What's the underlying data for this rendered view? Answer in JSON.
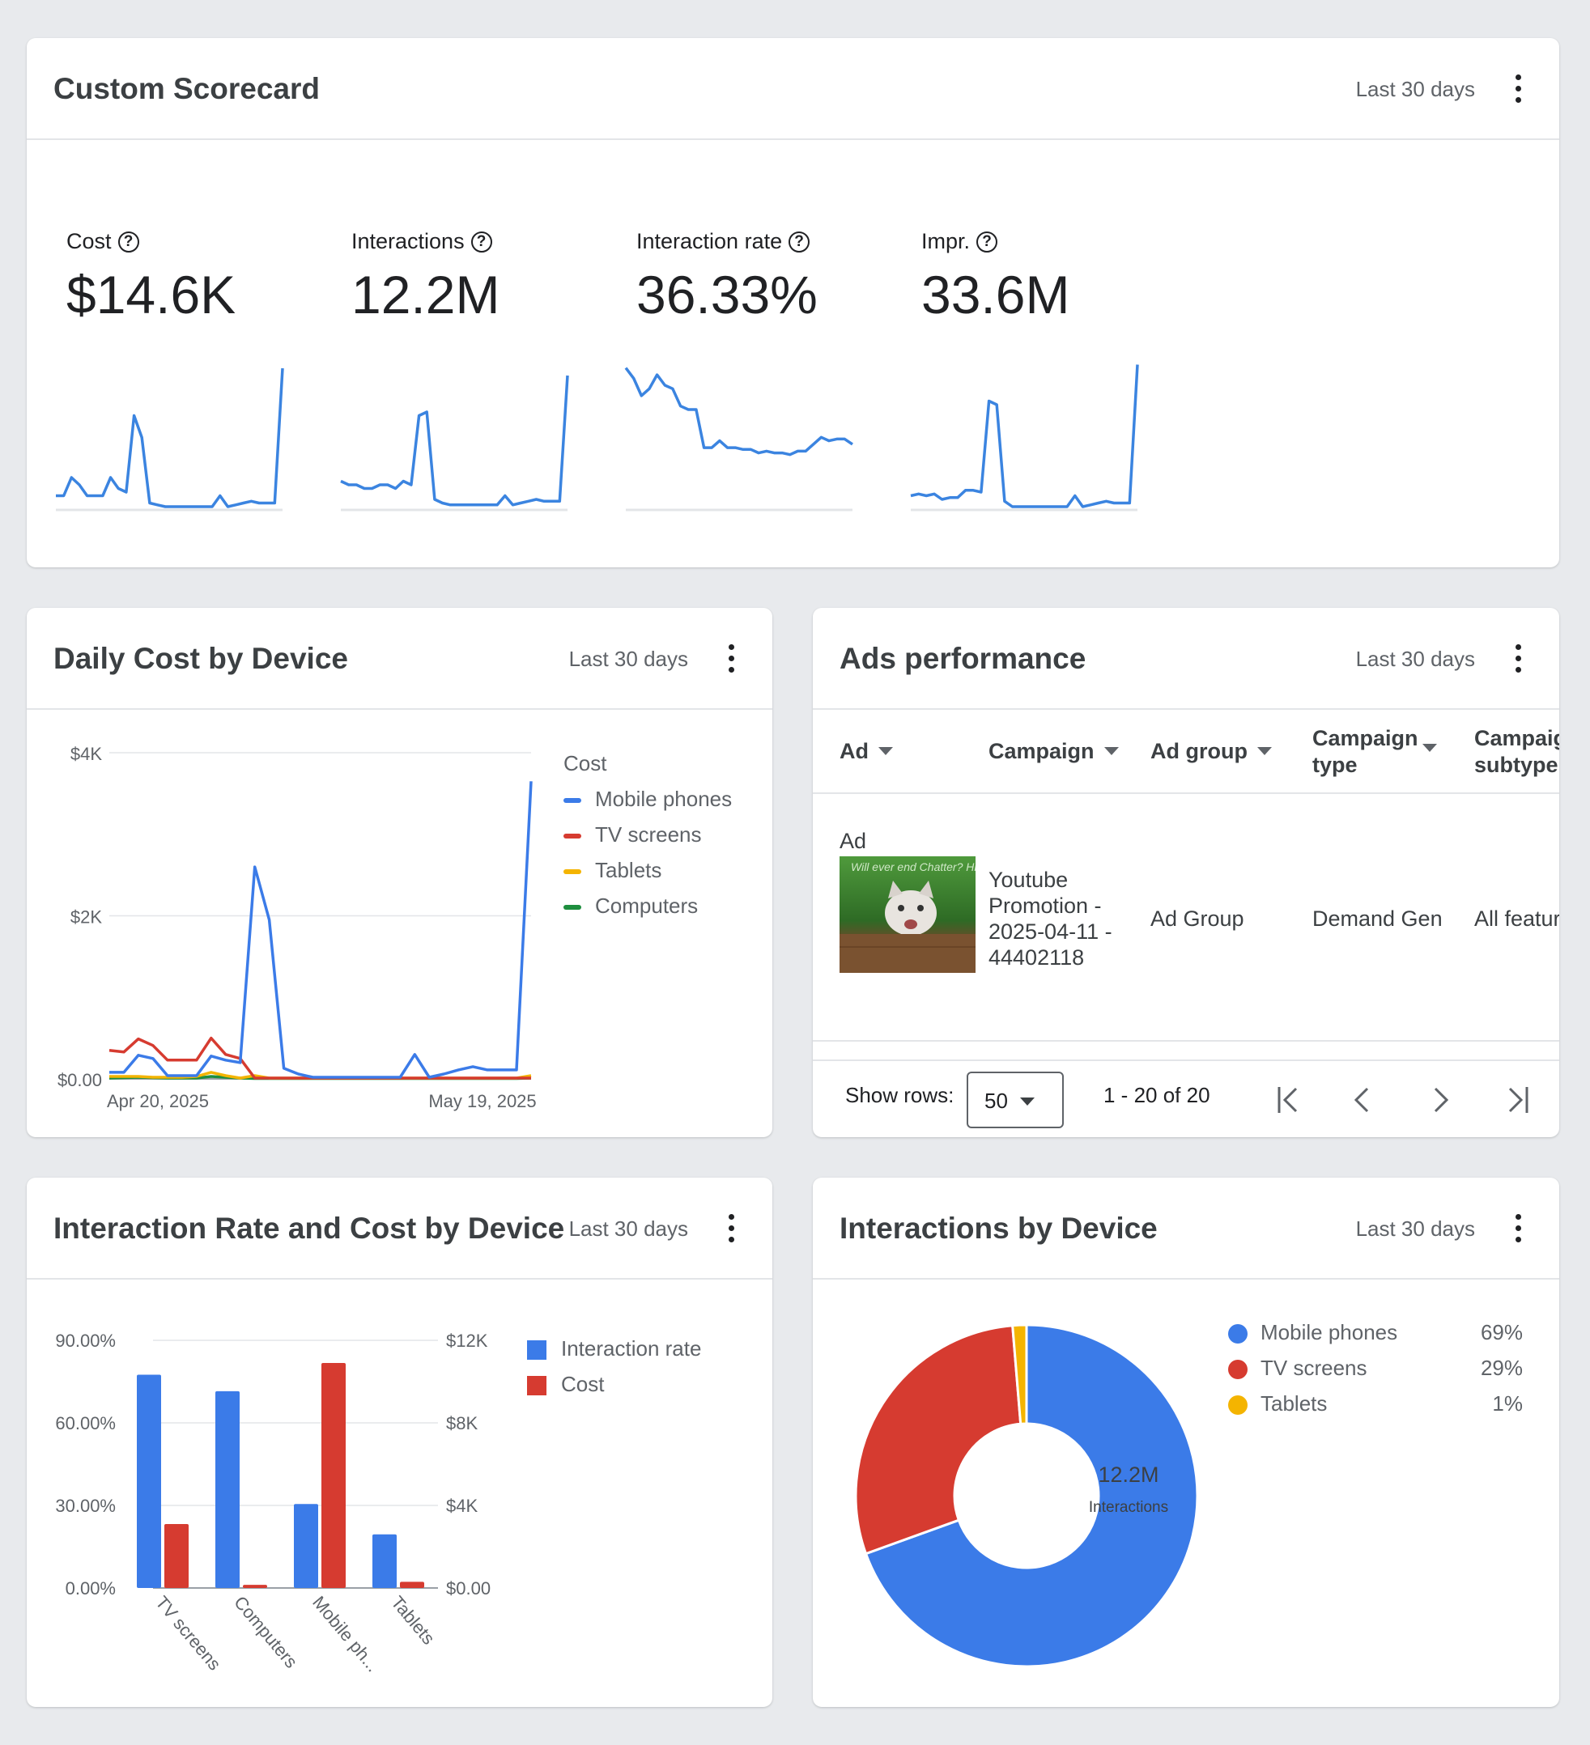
{
  "scorecard": {
    "title": "Custom Scorecard",
    "range": "Last 30 days",
    "metrics": [
      {
        "label": "Cost",
        "value": "$14.6K"
      },
      {
        "label": "Interactions",
        "value": "12.2M"
      },
      {
        "label": "Interaction rate",
        "value": "36.33%"
      },
      {
        "label": "Impr.",
        "value": "33.6M"
      }
    ]
  },
  "daily_cost": {
    "title": "Daily Cost by Device",
    "range": "Last 30 days",
    "legend_title": "Cost",
    "legend": [
      "Mobile phones",
      "TV screens",
      "Tablets",
      "Computers"
    ]
  },
  "ads": {
    "title": "Ads performance",
    "range": "Last 30 days",
    "columns": [
      "Ad",
      "Campaign",
      "Ad group",
      "Campaign type",
      "Campaign subtype"
    ],
    "row": {
      "ad": "Ad",
      "campaign": "Youtube Promotion - 2025-04-11 - 44402118",
      "ad_group": "Ad Group",
      "campaign_type": "Demand Gen",
      "campaign_subtype": "All features"
    },
    "thumbnail_text": "Will ever end Chatter? Hi!",
    "show_rows_label": "Show rows:",
    "rows_value": "50",
    "page_range": "1 - 20 of 20"
  },
  "rate_cost": {
    "title": "Interaction Rate and Cost by Device",
    "range": "Last 30 days",
    "legend": [
      "Interaction rate",
      "Cost"
    ]
  },
  "interactions": {
    "title": "Interactions by Device",
    "range": "Last 30 days",
    "center_value": "12.2M",
    "center_label": "Interactions",
    "legend": [
      {
        "label": "Mobile phones",
        "pct": "69%"
      },
      {
        "label": "TV screens",
        "pct": "29%"
      },
      {
        "label": "Tablets",
        "pct": "1%"
      }
    ]
  },
  "colors": {
    "blue": "#3b7be8",
    "red": "#d63b30",
    "yellow": "#f4b400",
    "green": "#1e8e3e"
  },
  "chart_data": [
    {
      "type": "line",
      "series": [
        {
          "name": "Cost",
          "values": [
            3,
            3,
            8,
            6,
            3,
            3,
            3,
            8,
            5,
            4,
            25,
            19,
            1,
            0.5,
            0,
            0,
            0,
            0,
            0,
            0,
            0,
            3,
            0,
            0.5,
            1,
            1.5,
            1,
            1,
            1,
            38
          ]
        }
      ],
      "ylim": [
        0,
        40
      ]
    },
    {
      "type": "line",
      "series": [
        {
          "name": "Interactions",
          "values": [
            7,
            6,
            6,
            5,
            5,
            6,
            6,
            5,
            7,
            6,
            25,
            26,
            2,
            1,
            0.5,
            0.5,
            0.5,
            0.5,
            0.5,
            0.5,
            0.5,
            3,
            0.5,
            1,
            1.5,
            2,
            1.5,
            1.5,
            1.5,
            36
          ]
        }
      ],
      "ylim": [
        0,
        40
      ]
    },
    {
      "type": "line",
      "series": [
        {
          "name": "Interaction rate",
          "values": [
            40,
            37,
            32,
            34,
            38,
            35,
            34,
            29,
            28,
            28,
            17,
            17,
            19,
            17,
            17,
            16.5,
            16.5,
            15.5,
            16,
            15.5,
            15.5,
            15,
            16,
            16,
            18,
            20,
            19,
            19.5,
            19.5,
            18
          ]
        }
      ],
      "ylim": [
        0,
        42
      ]
    },
    {
      "type": "line",
      "series": [
        {
          "name": "Impr.",
          "values": [
            3,
            3.5,
            3,
            3.5,
            2,
            2.5,
            2.5,
            4.5,
            4.5,
            4,
            29,
            28,
            1.5,
            0,
            0,
            0,
            0,
            0,
            0,
            0,
            0,
            3,
            0,
            0.5,
            1,
            1.5,
            1,
            1,
            1,
            39
          ]
        }
      ],
      "ylim": [
        0,
        40
      ]
    },
    {
      "type": "line",
      "title": "Daily Cost by Device",
      "x": [
        "Apr 20, 2025",
        "Apr 21, 2025",
        "Apr 22, 2025",
        "Apr 23, 2025",
        "Apr 24, 2025",
        "Apr 25, 2025",
        "Apr 26, 2025",
        "Apr 27, 2025",
        "Apr 28, 2025",
        "Apr 29, 2025",
        "Apr 30, 2025",
        "May 1, 2025",
        "May 2, 2025",
        "May 3, 2025",
        "May 4, 2025",
        "May 5, 2025",
        "May 6, 2025",
        "May 7, 2025",
        "May 8, 2025",
        "May 9, 2025",
        "May 10, 2025",
        "May 11, 2025",
        "May 12, 2025",
        "May 13, 2025",
        "May 14, 2025",
        "May 15, 2025",
        "May 16, 2025",
        "May 17, 2025",
        "May 18, 2025",
        "May 19, 2025"
      ],
      "x_ticks": [
        "Apr 20, 2025",
        "May 19, 2025"
      ],
      "y_ticks": [
        "$0.00",
        "$2K",
        "$4K"
      ],
      "ylim": [
        0,
        4000
      ],
      "legend_title": "Cost",
      "series": [
        {
          "name": "Mobile phones",
          "values": [
            80,
            80,
            290,
            250,
            40,
            40,
            40,
            280,
            230,
            200,
            2600,
            1950,
            130,
            60,
            20,
            20,
            20,
            20,
            20,
            20,
            20,
            300,
            20,
            60,
            110,
            150,
            110,
            110,
            110,
            3650
          ]
        },
        {
          "name": "TV screens",
          "values": [
            350,
            330,
            490,
            410,
            230,
            230,
            230,
            500,
            300,
            250,
            10,
            10,
            10,
            10,
            10,
            10,
            10,
            10,
            10,
            10,
            10,
            10,
            10,
            10,
            10,
            10,
            10,
            10,
            10,
            10
          ]
        },
        {
          "name": "Tablets",
          "values": [
            30,
            30,
            30,
            20,
            20,
            20,
            30,
            80,
            40,
            10,
            40,
            10,
            10,
            10,
            10,
            10,
            10,
            10,
            10,
            10,
            10,
            10,
            10,
            10,
            10,
            10,
            10,
            10,
            10,
            40
          ]
        },
        {
          "name": "Computers",
          "values": [
            10,
            15,
            20,
            15,
            10,
            10,
            10,
            30,
            20,
            10,
            5,
            5,
            5,
            5,
            5,
            5,
            5,
            5,
            5,
            5,
            5,
            5,
            5,
            5,
            5,
            5,
            5,
            5,
            5,
            10
          ]
        }
      ]
    },
    {
      "type": "bar",
      "title": "Interaction Rate and Cost by Device",
      "categories": [
        "TV screens",
        "Computers",
        "Mobile ph...",
        "Tablets"
      ],
      "series": [
        {
          "name": "Interaction rate",
          "axis": "left",
          "values": [
            77.5,
            71.5,
            30.5,
            19.5
          ]
        },
        {
          "name": "Cost",
          "axis": "right",
          "values": [
            3100,
            150,
            10900,
            300
          ]
        }
      ],
      "y_left_ticks": [
        "0.00%",
        "30.00%",
        "60.00%",
        "90.00%"
      ],
      "y_left_lim": [
        0,
        90
      ],
      "y_right_ticks": [
        "$0.00",
        "$4K",
        "$8K",
        "$12K"
      ],
      "y_right_lim": [
        0,
        12000
      ]
    },
    {
      "type": "pie",
      "title": "Interactions by Device",
      "labels": [
        "Mobile phones",
        "TV screens",
        "Tablets"
      ],
      "values": [
        69,
        29,
        1.3
      ]
    }
  ]
}
